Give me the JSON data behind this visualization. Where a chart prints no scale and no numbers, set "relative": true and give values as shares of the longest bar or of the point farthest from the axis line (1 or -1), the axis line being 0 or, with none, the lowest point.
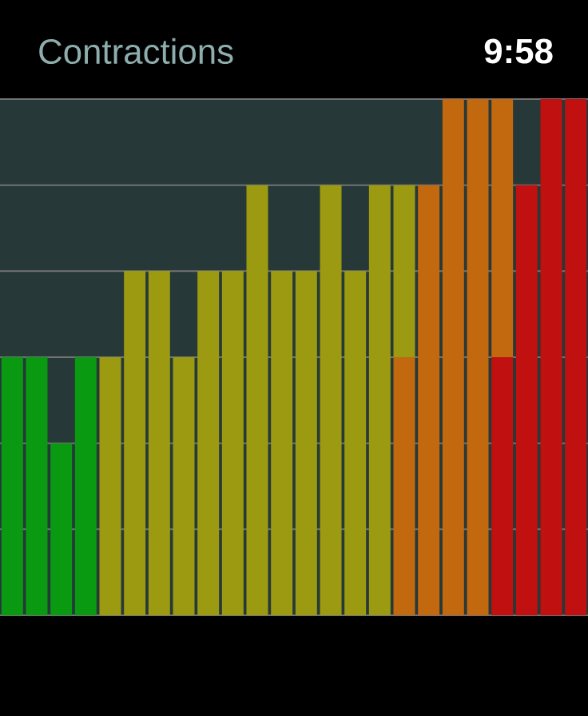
{
  "chart_data": {
    "type": "bar",
    "title": "Contractions",
    "annotations": [
      "9:58"
    ],
    "relative": true,
    "stacked": true,
    "grid": "y",
    "categories": [
      null,
      null,
      null,
      null,
      null,
      null,
      null,
      null,
      null,
      null,
      null,
      null,
      null,
      null,
      null,
      null,
      null,
      null,
      null,
      null,
      null,
      null,
      null,
      null
    ],
    "series": [
      {
        "color": "#c0100f",
        "values": [
          null,
          null,
          null,
          null,
          null,
          null,
          null,
          null,
          null,
          null,
          null,
          null,
          null,
          null,
          null,
          null,
          null,
          null,
          null,
          null,
          0.5,
          0.833,
          1,
          1
        ]
      },
      {
        "color": "#c2680f",
        "values": [
          null,
          null,
          null,
          null,
          null,
          null,
          null,
          null,
          null,
          null,
          null,
          null,
          null,
          null,
          null,
          null,
          0.5,
          0.833,
          1,
          1,
          0.5,
          null,
          null,
          null
        ]
      },
      {
        "color": "#9c9a10",
        "values": [
          null,
          null,
          null,
          null,
          0.5,
          0.667,
          0.667,
          0.5,
          0.667,
          0.667,
          0.833,
          0.667,
          0.667,
          0.833,
          0.667,
          0.833,
          0.333,
          null,
          null,
          null,
          null,
          null,
          null,
          null
        ]
      },
      {
        "color": "#0a9a12",
        "values": [
          0.5,
          0.5,
          0.333,
          0.5,
          null,
          null,
          null,
          null,
          null,
          null,
          null,
          null,
          null,
          null,
          null,
          null,
          null,
          null,
          null,
          null,
          null,
          null,
          null,
          null
        ]
      }
    ]
  }
}
